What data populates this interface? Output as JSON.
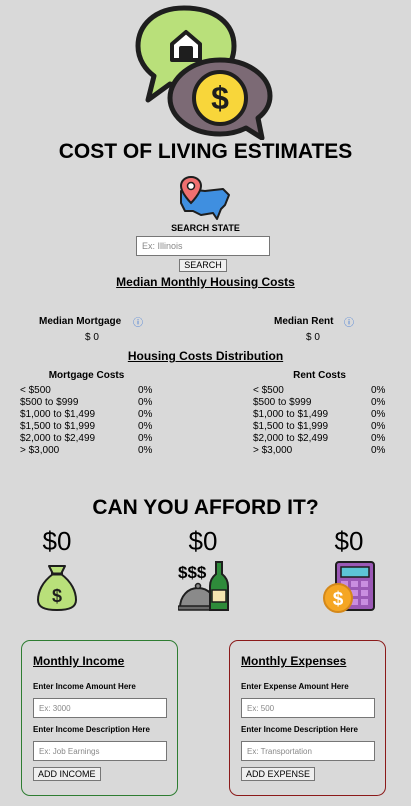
{
  "header": {
    "title": "COST OF LIVING ESTIMATES"
  },
  "search": {
    "label": "SEARCH STATE",
    "placeholder": "Ex: Illinois",
    "button": "SEARCH"
  },
  "median": {
    "heading": "Median Monthly Housing Costs",
    "mortgage_label": "Median Mortgage",
    "mortgage_value": "$ 0",
    "rent_label": "Median Rent",
    "rent_value": "$ 0",
    "info_icon": "info-circle-icon"
  },
  "distribution": {
    "heading": "Housing Costs Distribution",
    "mortgage": {
      "title": "Mortgage Costs",
      "rows": [
        {
          "range": "< $500",
          "pct": "0%"
        },
        {
          "range": "$500 to $999",
          "pct": "0%"
        },
        {
          "range": "$1,000 to $1,499",
          "pct": "0%"
        },
        {
          "range": "$1,500 to $1,999",
          "pct": "0%"
        },
        {
          "range": "$2,000 to $2,499",
          "pct": "0%"
        },
        {
          "range": "> $3,000",
          "pct": "0%"
        }
      ]
    },
    "rent": {
      "title": "Rent Costs",
      "rows": [
        {
          "range": "< $500",
          "pct": "0%"
        },
        {
          "range": "$500 to $999",
          "pct": "0%"
        },
        {
          "range": "$1,000 to $1,499",
          "pct": "0%"
        },
        {
          "range": "$1,500 to $1,999",
          "pct": "0%"
        },
        {
          "range": "$2,000 to $2,499",
          "pct": "0%"
        },
        {
          "range": "> $3,000",
          "pct": "0%"
        }
      ]
    }
  },
  "afford": {
    "heading": "CAN YOU AFFORD IT?",
    "amounts": [
      "$0",
      "$0",
      "$0"
    ],
    "dining_icon_text": "$$$"
  },
  "income": {
    "title": "Monthly Income",
    "amount_label": "Enter Income Amount Here",
    "amount_placeholder": "Ex: 3000",
    "desc_label": "Enter Income Description Here",
    "desc_placeholder": "Ex: Job Earnings",
    "button": "ADD INCOME"
  },
  "expense": {
    "title": "Monthly Expenses",
    "amount_label": "Enter Expense Amount Here",
    "amount_placeholder": "Ex: 500",
    "desc_label": "Enter Income Description Here",
    "desc_placeholder": "Ex: Transportation",
    "button": "ADD EXPENSE"
  },
  "colors": {
    "background": "#d9d9d9",
    "income_border": "#2e7d32",
    "expense_border": "#8b1a1a",
    "info_blue": "#2f6fd6"
  }
}
